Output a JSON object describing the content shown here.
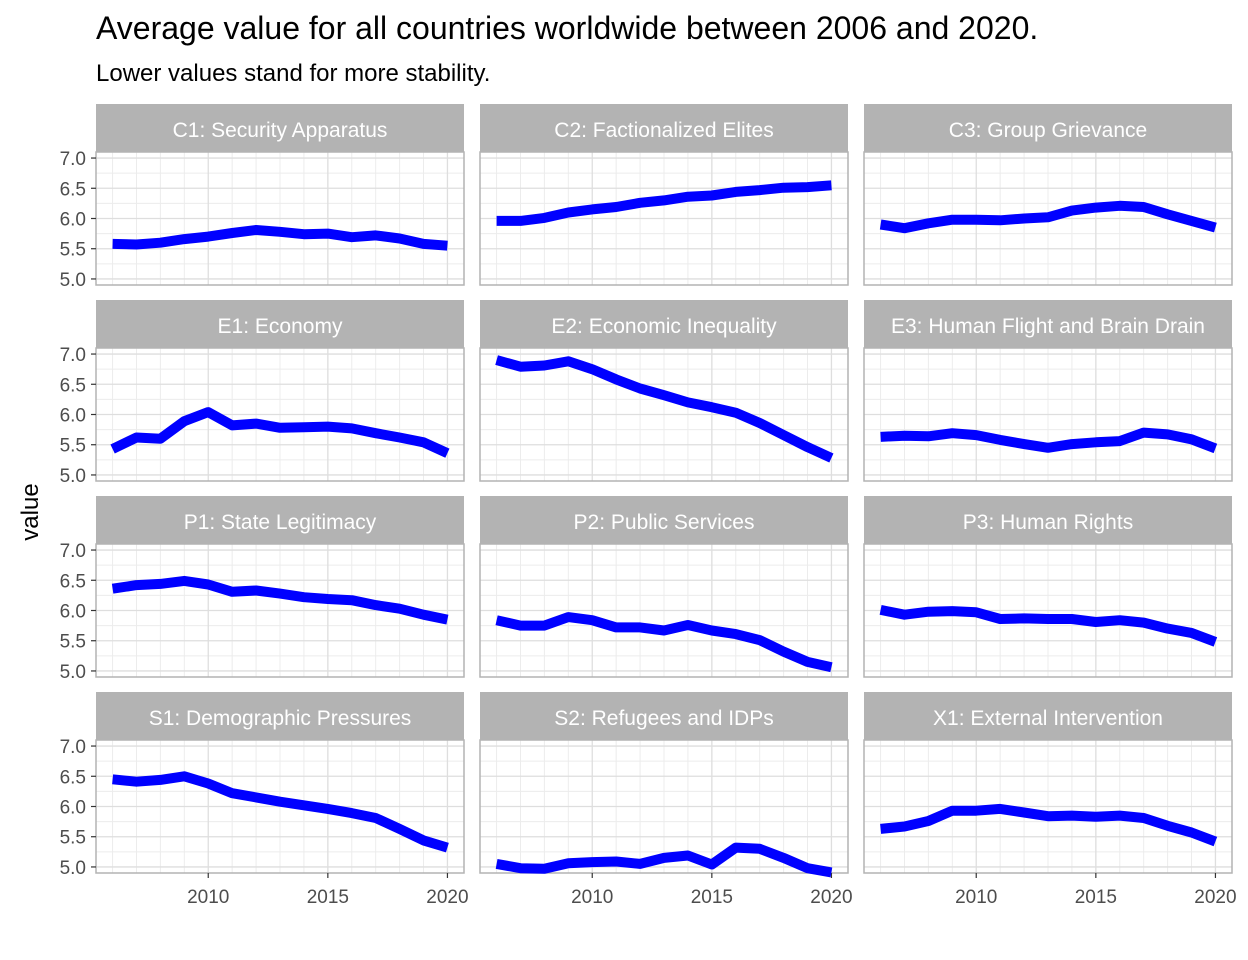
{
  "chart_data": {
    "type": "line",
    "title": "Average value for all countries worldwide between 2006 and 2020.",
    "subtitle": "Lower values stand for more stability.",
    "xlabel": "",
    "ylabel": "value",
    "xlim": [
      2006,
      2020
    ],
    "ylim": [
      4.9,
      7.1
    ],
    "x_ticks": [
      2010,
      2015,
      2020
    ],
    "y_ticks": [
      "5.0",
      "5.5",
      "6.0",
      "6.5",
      "7.0"
    ],
    "grid": true,
    "colors": {
      "line": "#0000ff",
      "strip": "#b3b3b3",
      "grid": "#dedede",
      "border": "#b3b3b3"
    },
    "x": [
      2006,
      2007,
      2008,
      2009,
      2010,
      2011,
      2012,
      2013,
      2014,
      2015,
      2016,
      2017,
      2018,
      2019,
      2020
    ],
    "panels": [
      {
        "name": "C1: Security Apparatus",
        "values": [
          5.58,
          5.57,
          5.6,
          5.66,
          5.7,
          5.76,
          5.81,
          5.78,
          5.74,
          5.75,
          5.69,
          5.72,
          5.67,
          5.58,
          5.55
        ]
      },
      {
        "name": "C2: Factionalized Elites",
        "values": [
          5.96,
          5.96,
          6.01,
          6.1,
          6.15,
          6.19,
          6.26,
          6.3,
          6.36,
          6.38,
          6.44,
          6.47,
          6.51,
          6.52,
          6.55
        ]
      },
      {
        "name": "C3: Group Grievance",
        "values": [
          5.9,
          5.84,
          5.92,
          5.98,
          5.98,
          5.97,
          6.0,
          6.02,
          6.13,
          6.18,
          6.21,
          6.19,
          6.07,
          5.96,
          5.85
        ]
      },
      {
        "name": "E1: Economy",
        "values": [
          5.43,
          5.62,
          5.6,
          5.89,
          6.04,
          5.82,
          5.85,
          5.78,
          5.79,
          5.8,
          5.77,
          5.69,
          5.62,
          5.54,
          5.36
        ]
      },
      {
        "name": "E2: Economic Inequality",
        "values": [
          6.9,
          6.79,
          6.81,
          6.88,
          6.75,
          6.58,
          6.43,
          6.32,
          6.2,
          6.12,
          6.03,
          5.86,
          5.66,
          5.46,
          5.28
        ]
      },
      {
        "name": "E3: Human Flight and Brain Drain",
        "values": [
          5.63,
          5.65,
          5.64,
          5.69,
          5.66,
          5.58,
          5.51,
          5.45,
          5.51,
          5.54,
          5.56,
          5.7,
          5.67,
          5.59,
          5.44
        ]
      },
      {
        "name": "P1: State Legitimacy",
        "values": [
          6.36,
          6.42,
          6.44,
          6.49,
          6.43,
          6.31,
          6.33,
          6.28,
          6.22,
          6.19,
          6.17,
          6.09,
          6.03,
          5.93,
          5.85
        ]
      },
      {
        "name": "P2: Public Services",
        "values": [
          5.84,
          5.75,
          5.75,
          5.89,
          5.84,
          5.72,
          5.72,
          5.67,
          5.76,
          5.67,
          5.61,
          5.51,
          5.32,
          5.15,
          5.06
        ]
      },
      {
        "name": "P3: Human Rights",
        "values": [
          6.01,
          5.93,
          5.98,
          5.99,
          5.97,
          5.86,
          5.87,
          5.86,
          5.86,
          5.81,
          5.84,
          5.8,
          5.7,
          5.63,
          5.48
        ]
      },
      {
        "name": "S1: Demographic Pressures",
        "values": [
          6.45,
          6.41,
          6.44,
          6.5,
          6.38,
          6.22,
          6.15,
          6.08,
          6.02,
          5.96,
          5.89,
          5.81,
          5.63,
          5.44,
          5.32
        ]
      },
      {
        "name": "S2: Refugees and IDPs",
        "values": [
          5.05,
          4.98,
          4.97,
          5.06,
          5.08,
          5.09,
          5.05,
          5.15,
          5.19,
          5.04,
          5.32,
          5.3,
          5.15,
          4.98,
          4.91
        ]
      },
      {
        "name": "X1: External Intervention",
        "values": [
          5.63,
          5.67,
          5.76,
          5.93,
          5.93,
          5.96,
          5.9,
          5.84,
          5.85,
          5.83,
          5.85,
          5.81,
          5.68,
          5.57,
          5.42
        ]
      }
    ]
  }
}
